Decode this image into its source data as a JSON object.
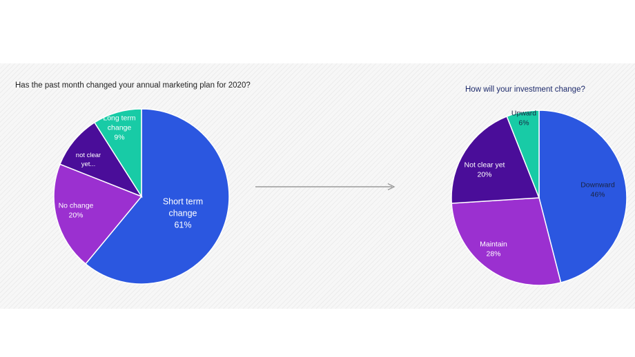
{
  "chart_data": [
    {
      "type": "pie",
      "title": "Has the past month changed your annual marketing plan for 2020?",
      "slices": [
        {
          "label_lines": [
            "Short term",
            "change",
            "61%"
          ],
          "value": 61,
          "color": "#2b57e0"
        },
        {
          "label_lines": [
            "No change",
            "20%"
          ],
          "value": 20,
          "color": "#9b30d0"
        },
        {
          "label_lines": [
            "not clear",
            "yet..."
          ],
          "value": 10,
          "color": "#4a0d99"
        },
        {
          "label_lines": [
            "Long term",
            "change",
            "9%"
          ],
          "value": 9,
          "color": "#18cba6"
        }
      ]
    },
    {
      "type": "pie",
      "title": "How will your investment change?",
      "slices": [
        {
          "label_lines": [
            "Downward",
            "46%"
          ],
          "value": 46,
          "color": "#2b57e0"
        },
        {
          "label_lines": [
            "Maintain",
            "28%"
          ],
          "value": 28,
          "color": "#9b30d0"
        },
        {
          "label_lines": [
            "Not clear yet",
            "20%"
          ],
          "value": 20,
          "color": "#4a0d99"
        },
        {
          "label_lines": [
            "Upward",
            "6%"
          ],
          "value": 6,
          "color": "#18cba6"
        }
      ]
    }
  ]
}
